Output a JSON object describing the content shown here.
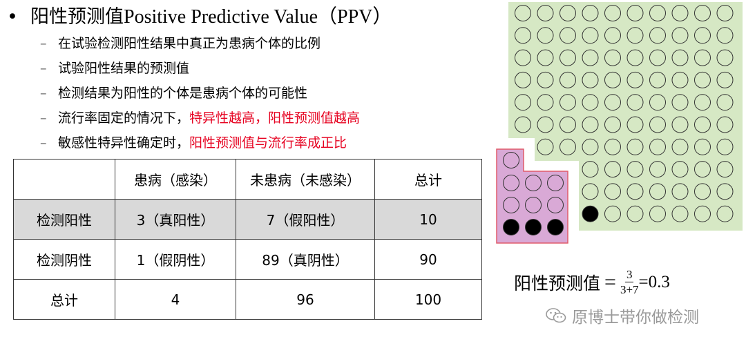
{
  "title": {
    "bullet": "•",
    "cn": "阳性预测值",
    "en": "Positive Predictive Value（PPV）"
  },
  "bullets": [
    {
      "dash": "–",
      "text": "在试验检测阳性结果中真正为患病个体的比例",
      "red": ""
    },
    {
      "dash": "–",
      "text": "试验阳性结果的预测值",
      "red": ""
    },
    {
      "dash": "–",
      "text": "检测结果为阳性的个体是患病个体的可能性",
      "red": ""
    },
    {
      "dash": "–",
      "text": "流行率固定的情况下，",
      "red": "特异性越高，阳性预测值越高"
    },
    {
      "dash": "–",
      "text": "敏感性特异性确定时，",
      "red": "阳性预测值与流行率成正比"
    }
  ],
  "table": {
    "header": [
      "",
      "患病（感染）",
      "未患病（未感染）",
      "总计"
    ],
    "rows": [
      [
        "检测阳性",
        "3（真阳性）",
        "7（假阳性）",
        "10"
      ],
      [
        "检测阴性",
        "1（假阴性）",
        "89（真阴性）",
        "90"
      ],
      [
        "总计",
        "4",
        "96",
        "100"
      ]
    ]
  },
  "colors": {
    "red_text": "#e6001f",
    "green_panel": "#d6e8c4",
    "pink_panel": "#d9a9d6",
    "pink_border": "#e05a6a",
    "highlight_row": "#d9d9d9"
  },
  "diagram": {
    "total": 100,
    "positive_box_count": 10,
    "true_positives": 3,
    "false_negatives": 1
  },
  "formula": {
    "label": "阳性预测值",
    "equals": "=",
    "numerator": "3",
    "denominator": "3+7",
    "result": "=0.3"
  },
  "watermark": {
    "icon": "wechat-icon",
    "text": "原博士带你做检测"
  }
}
